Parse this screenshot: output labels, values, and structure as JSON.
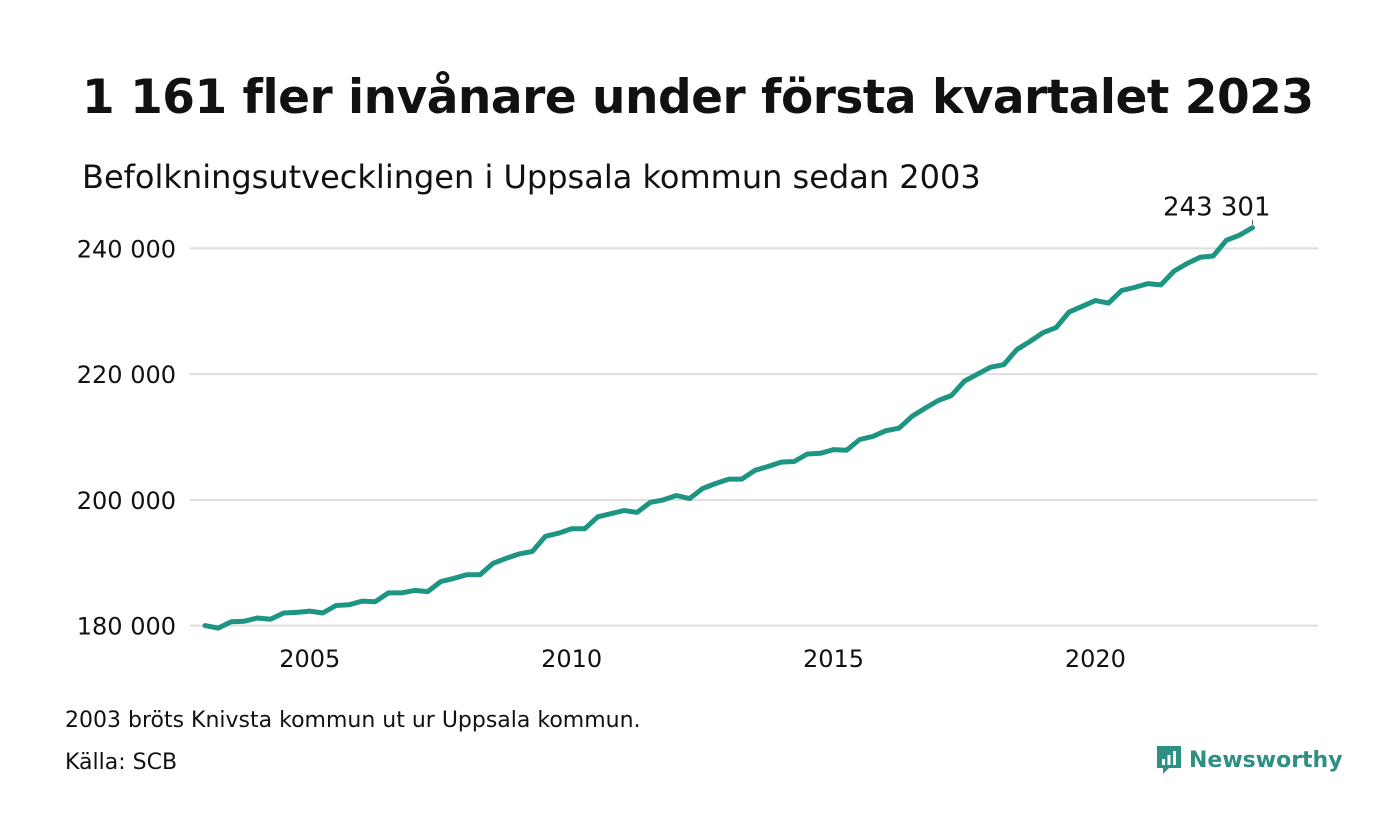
{
  "title": "1 161 fler invånare under första kvartalet 2023",
  "subtitle": "Befolkningsutvecklingen i Uppsala kommun sedan 2003",
  "note": "2003 bröts Knivsta kommun ut ur Uppsala kommun.",
  "source": "Källa: SCB",
  "brand": {
    "name": "Newsworthy",
    "icon": "newsworthy-logo-icon",
    "color": "#2e8f83"
  },
  "colors": {
    "line": "#1e9583",
    "grid": "#dddddd",
    "text": "#111111"
  },
  "chart_data": {
    "type": "line",
    "title": "1 161 fler invånare under första kvartalet 2023",
    "subtitle": "Befolkningsutvecklingen i Uppsala kommun sedan 2003",
    "xlabel": "",
    "ylabel": "",
    "xlim": [
      2003.0,
      2024.25
    ],
    "ylim": [
      178500,
      245000
    ],
    "x_ticks": [
      2005,
      2010,
      2015,
      2020
    ],
    "x_tick_labels": [
      "2005",
      "2010",
      "2015",
      "2020"
    ],
    "y_ticks": [
      180000,
      200000,
      220000,
      240000
    ],
    "y_tick_labels": [
      "180 000",
      "200 000",
      "220 000",
      "240 000"
    ],
    "grid": true,
    "end_label": "243 301",
    "series": [
      {
        "x": [
          2003.0,
          2003.25,
          2003.5,
          2003.75,
          2004.0,
          2004.25,
          2004.5,
          2004.75,
          2005.0,
          2005.25,
          2005.5,
          2005.75,
          2006.0,
          2006.25,
          2006.5,
          2006.75,
          2007.0,
          2007.25,
          2007.5,
          2007.75,
          2008.0,
          2008.25,
          2008.5,
          2008.75,
          2009.0,
          2009.25,
          2009.5,
          2009.75,
          2010.0,
          2010.25,
          2010.5,
          2010.75,
          2011.0,
          2011.25,
          2011.5,
          2011.75,
          2012.0,
          2012.25,
          2012.5,
          2012.75,
          2013.0,
          2013.25,
          2013.5,
          2013.75,
          2014.0,
          2014.25,
          2014.5,
          2014.75,
          2015.0,
          2015.25,
          2015.5,
          2015.75,
          2016.0,
          2016.25,
          2016.5,
          2016.75,
          2017.0,
          2017.25,
          2017.5,
          2017.75,
          2018.0,
          2018.25,
          2018.5,
          2018.75,
          2019.0,
          2019.25,
          2019.5,
          2019.75,
          2020.0,
          2020.25,
          2020.5,
          2020.75,
          2021.0,
          2021.25,
          2021.5,
          2021.75,
          2022.0,
          2022.25,
          2022.5,
          2022.75,
          2023.0
        ],
        "values": [
          180000,
          179600,
          180600,
          180700,
          181200,
          181000,
          182000,
          182100,
          182300,
          182000,
          183200,
          183300,
          183900,
          183800,
          185200,
          185200,
          185600,
          185400,
          187000,
          187500,
          188100,
          188100,
          189900,
          190700,
          191400,
          191800,
          194200,
          194700,
          195400,
          195400,
          197300,
          197800,
          198300,
          198000,
          199600,
          200000,
          200700,
          200200,
          201800,
          202600,
          203300,
          203300,
          204700,
          205300,
          206000,
          206100,
          207300,
          207400,
          208000,
          207900,
          209600,
          210100,
          211000,
          211400,
          213300,
          214600,
          215800,
          216600,
          218900,
          220000,
          221100,
          221500,
          223900,
          225200,
          226600,
          227400,
          229900,
          230800,
          231700,
          231300,
          233300,
          233800,
          234400,
          234200,
          236400,
          237600,
          238600,
          238800,
          241300,
          242100,
          243301
        ]
      }
    ]
  }
}
